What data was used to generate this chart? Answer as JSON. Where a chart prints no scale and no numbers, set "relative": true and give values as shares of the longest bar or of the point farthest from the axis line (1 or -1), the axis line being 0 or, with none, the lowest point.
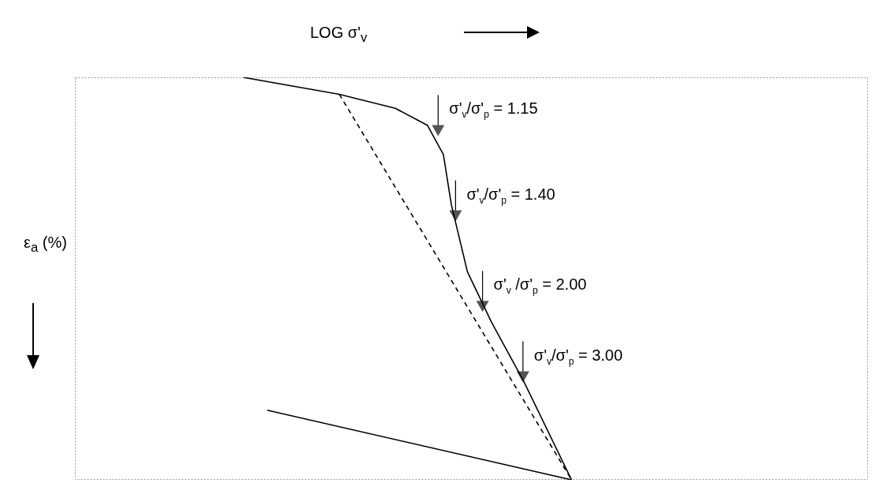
{
  "chart_data": {
    "type": "line",
    "relative": true,
    "xlabel": "LOG σ'$_{v}$",
    "ylabel": "ε$_{a}$ (%)",
    "marker": "none",
    "categories": [
      null,
      null,
      null,
      null,
      null,
      null,
      null,
      null,
      null,
      null,
      null,
      null,
      null,
      null,
      null,
      null,
      null,
      null,
      null,
      null,
      null,
      null,
      null,
      null,
      null,
      null,
      null,
      null,
      null,
      null,
      null,
      null,
      null,
      null,
      null,
      null,
      null,
      null,
      null,
      null,
      null,
      null,
      null,
      null,
      null,
      null,
      null,
      null,
      null,
      null,
      null,
      null,
      null,
      null,
      null,
      null,
      null,
      null,
      null,
      null,
      null,
      null,
      null,
      null,
      null,
      null,
      null,
      null,
      null,
      null,
      null,
      null,
      null,
      null,
      null,
      null,
      null,
      null,
      null,
      null,
      null,
      null,
      null,
      null,
      null,
      null,
      null,
      null,
      null,
      null,
      null,
      null,
      null,
      null,
      null,
      null,
      null,
      null,
      null,
      null
    ],
    "series": [
      {
        "color": "#000000",
        "line_style": "solid",
        "values": [
          null,
          null,
          null,
          null,
          null,
          null,
          null,
          null,
          null,
          null,
          null,
          null,
          null,
          null,
          null,
          null,
          null,
          null,
          null,
          null,
          null,
          1,
          null,
          null,
          null,
          null,
          null,
          null,
          null,
          null,
          null,
          null,
          null,
          0.958,
          null,
          null,
          null,
          null,
          null,
          null,
          0.923,
          null,
          null,
          null,
          0.881,
          null,
          0.808,
          0.683,
          null,
          0.517,
          null,
          null,
          0.392,
          null,
          null,
          null,
          0.246,
          null,
          null,
          null,
          null,
          null,
          0,
          null,
          null,
          null,
          null,
          null,
          null,
          null,
          null,
          null,
          null,
          null,
          null,
          null,
          null,
          null,
          null,
          null,
          null,
          null,
          null,
          null,
          null,
          null,
          null,
          null,
          null,
          null,
          null,
          null,
          null,
          null,
          null,
          null,
          null,
          null,
          null,
          null
        ]
      },
      {
        "color": "#000000",
        "line_style": "solid",
        "values": [
          null,
          null,
          null,
          null,
          null,
          null,
          null,
          null,
          null,
          null,
          null,
          null,
          null,
          null,
          null,
          null,
          null,
          null,
          null,
          null,
          null,
          null,
          null,
          null,
          0.173,
          null,
          null,
          null,
          null,
          null,
          null,
          null,
          null,
          null,
          null,
          null,
          null,
          null,
          null,
          null,
          null,
          null,
          null,
          null,
          null,
          null,
          null,
          null,
          null,
          null,
          null,
          null,
          null,
          null,
          null,
          null,
          null,
          null,
          null,
          null,
          null,
          null,
          0,
          null,
          null,
          null,
          null,
          null,
          null,
          null,
          null,
          null,
          null,
          null,
          null,
          null,
          null,
          null,
          null,
          null,
          null,
          null,
          null,
          null,
          null,
          null,
          null,
          null,
          null,
          null,
          null,
          null,
          null,
          null,
          null,
          null,
          null,
          null,
          null,
          null
        ]
      },
      {
        "color": "#000000",
        "line_style": "dashed",
        "values": [
          null,
          null,
          null,
          null,
          null,
          null,
          null,
          null,
          null,
          null,
          null,
          null,
          null,
          null,
          null,
          null,
          null,
          null,
          null,
          null,
          null,
          null,
          null,
          null,
          null,
          null,
          null,
          null,
          null,
          null,
          null,
          null,
          null,
          0.958,
          null,
          null,
          null,
          null,
          null,
          null,
          null,
          null,
          null,
          null,
          null,
          null,
          null,
          null,
          null,
          null,
          null,
          null,
          null,
          null,
          null,
          null,
          null,
          null,
          null,
          null,
          null,
          null,
          0,
          null,
          null,
          null,
          null,
          null,
          null,
          null,
          null,
          null,
          null,
          null,
          null,
          null,
          null,
          null,
          null,
          null,
          null,
          null,
          null,
          null,
          null,
          null,
          null,
          null,
          null,
          null,
          null,
          null,
          null,
          null,
          null,
          null,
          null,
          null,
          null,
          null
        ]
      }
    ],
    "annotations": [
      "σ'$_{v}$/σ'$_{p}$ = 1.15",
      "σ'$_{v}$/σ'$_{p}$ = 1.40",
      "σ'$_{v}$ /σ'$_{p}$ = 2.00",
      "σ'$_{v}$/σ'$_{p}$ = 3.00"
    ]
  }
}
